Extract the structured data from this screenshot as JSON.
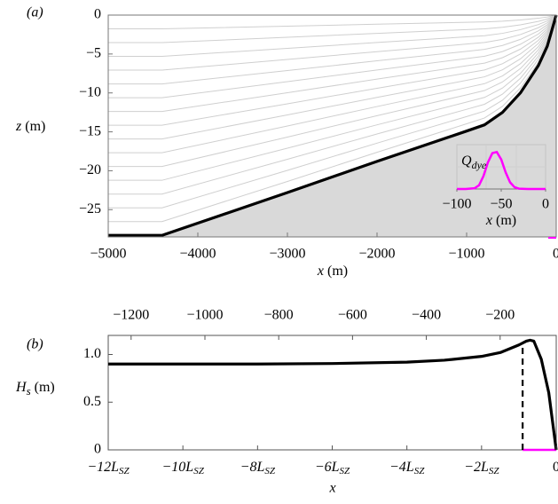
{
  "chart_data": [
    {
      "type": "area",
      "label": "(a)",
      "xlabel_symbol": "x",
      "xlabel_unit": "(m)",
      "ylabel_symbol": "z",
      "ylabel_unit": "(m)",
      "x": [
        -5000,
        -4400,
        -3000,
        -2000,
        -1000,
        -800,
        -600,
        -400,
        -200,
        -100,
        0
      ],
      "y": [
        -28.3,
        -28.3,
        -22.8,
        -18.8,
        -14.9,
        -14.1,
        -12.5,
        -10,
        -6.5,
        -4,
        0
      ],
      "xlim": [
        -5000,
        0
      ],
      "ylim": [
        -28.5,
        0
      ],
      "xticks": [
        {
          "value": -5000,
          "label": "−5000"
        },
        {
          "value": -4000,
          "label": "−4000"
        },
        {
          "value": -3000,
          "label": "−3000"
        },
        {
          "value": -2000,
          "label": "−2000"
        },
        {
          "value": -1000,
          "label": "−1000"
        },
        0
      ],
      "yticks": [
        0,
        {
          "value": -5,
          "label": "−5"
        },
        {
          "value": -10,
          "label": "−10"
        },
        {
          "value": -15,
          "label": "−15"
        },
        {
          "value": -20,
          "label": "−20"
        },
        {
          "value": -25,
          "label": "−25"
        }
      ],
      "vertical_layers": 16,
      "color": "#000000",
      "fill": "#d9d9d9",
      "layer_color": "#cfcfcf",
      "inset": {
        "type": "line",
        "title": "Q",
        "title_subscript": "dye",
        "xlabel_symbol": "x",
        "xlabel_unit": "(m)",
        "x": [
          -100,
          -90,
          -80,
          -75,
          -70,
          -65,
          -60,
          -55,
          -50,
          -45,
          -40,
          -35,
          -30,
          -20,
          -10,
          0
        ],
        "values": [
          0,
          0,
          0.02,
          0.1,
          0.35,
          0.72,
          0.97,
          1.0,
          0.8,
          0.45,
          0.18,
          0.05,
          0.01,
          0,
          0,
          0
        ],
        "xlim": [
          -100,
          0
        ],
        "ylim": [
          0,
          1.2
        ],
        "xticks": [
          {
            "value": -100,
            "label": "−100"
          },
          {
            "value": -50,
            "label": "−50"
          },
          0
        ],
        "color": "#ff00ff"
      }
    },
    {
      "type": "line",
      "label": "(b)",
      "xlabel": "x",
      "ylabel_symbol": "H",
      "ylabel_subscript": "s",
      "ylabel_unit": "(m)",
      "x": [
        -12,
        -10,
        -8,
        -6,
        -4,
        -3,
        -2,
        -1.5,
        -1,
        -0.8,
        -0.7,
        -0.6,
        -0.4,
        -0.2,
        0
      ],
      "values": [
        0.9,
        0.9,
        0.9,
        0.905,
        0.92,
        0.94,
        0.98,
        1.02,
        1.1,
        1.14,
        1.15,
        1.14,
        0.95,
        0.6,
        0
      ],
      "xlim": [
        -12,
        0
      ],
      "ylim": [
        0,
        1.2
      ],
      "xticks": [
        {
          "value": -12,
          "label": "−12L"
        },
        {
          "value": -10,
          "label": "−10L"
        },
        {
          "value": -8,
          "label": "−8L"
        },
        {
          "value": -6,
          "label": "−6L"
        },
        {
          "value": -4,
          "label": "−4L"
        },
        {
          "value": -2,
          "label": "−2L"
        },
        0
      ],
      "xtick_subscript": "SZ",
      "yticks": [
        0,
        0.5,
        {
          "value": 1,
          "label": "1.0"
        }
      ],
      "x2lim": [
        -1262,
        -48
      ],
      "x2ticks": [
        {
          "value": -1200,
          "label": "−1200"
        },
        {
          "value": -1000,
          "label": "−1000"
        },
        {
          "value": -800,
          "label": "−800"
        },
        {
          "value": -600,
          "label": "−600"
        },
        {
          "value": -400,
          "label": "−400"
        },
        {
          "value": -200,
          "label": "−200"
        },
        0
      ],
      "break_x": -0.9,
      "break_top": 1.13,
      "color": "#000000",
      "marker_color": "#ff00ff"
    }
  ]
}
